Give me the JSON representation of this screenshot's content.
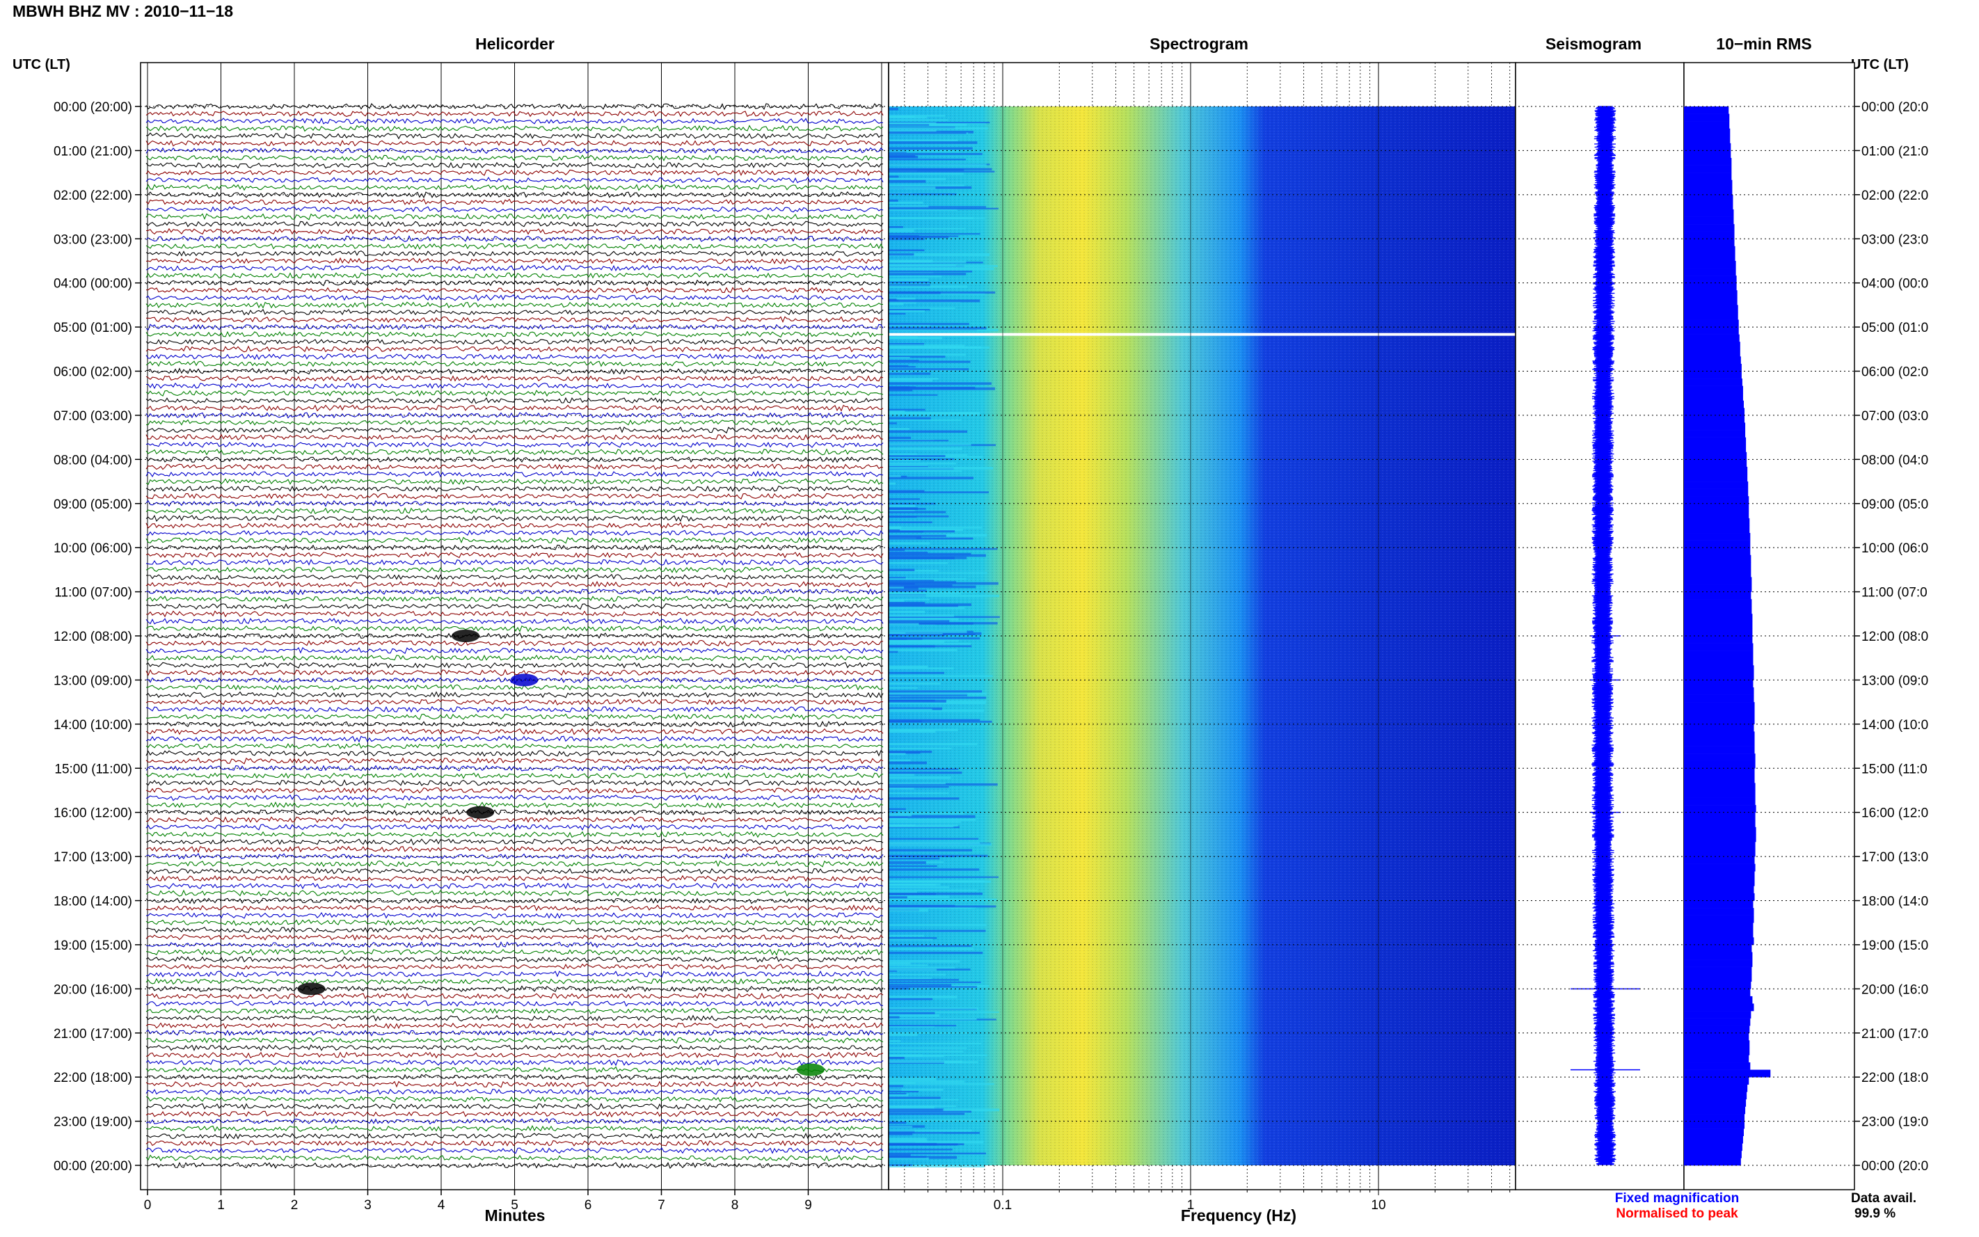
{
  "header": {
    "title": "MBWH BHZ MV : 2010−11−18",
    "utc_label_left": "UTC (LT)",
    "utc_label_right": "UTC (LT)"
  },
  "panels": {
    "helicorder": "Helicorder",
    "spectrogram": "Spectrogram",
    "seismogram": "Seismogram",
    "rms": "10−min RMS"
  },
  "time_labels": [
    "00:00 (20:00)",
    "01:00 (21:00)",
    "02:00 (22:00)",
    "03:00 (23:00)",
    "04:00 (00:00)",
    "05:00 (01:00)",
    "06:00 (02:00)",
    "07:00 (03:00)",
    "08:00 (04:00)",
    "09:00 (05:00)",
    "10:00 (06:00)",
    "11:00 (07:00)",
    "12:00 (08:00)",
    "13:00 (09:00)",
    "14:00 (10:00)",
    "15:00 (11:00)",
    "16:00 (12:00)",
    "17:00 (13:00)",
    "18:00 (14:00)",
    "19:00 (15:00)",
    "20:00 (16:00)",
    "21:00 (17:00)",
    "22:00 (18:00)",
    "23:00 (19:00)",
    "00:00 (20:00)"
  ],
  "time_labels_right": [
    "00:00 (20:0",
    "01:00 (21:0",
    "02:00 (22:0",
    "03:00 (23:0",
    "04:00 (00:0",
    "05:00 (01:0",
    "06:00 (02:0",
    "07:00 (03:0",
    "08:00 (04:0",
    "09:00 (05:0",
    "10:00 (06:0",
    "11:00 (07:0",
    "12:00 (08:0",
    "13:00 (09:0",
    "14:00 (10:0",
    "15:00 (11:0",
    "16:00 (12:0",
    "17:00 (13:0",
    "18:00 (14:0",
    "19:00 (15:0",
    "20:00 (16:0",
    "21:00 (17:0",
    "22:00 (18:0",
    "23:00 (19:0",
    "00:00 (20:0"
  ],
  "helicorder": {
    "x_ticks": [
      "0",
      "1",
      "2",
      "3",
      "4",
      "5",
      "6",
      "7",
      "8",
      "9"
    ],
    "xlabel": "Minutes",
    "line_colors": [
      "#000000",
      "#8b0000",
      "#0000cc",
      "#008000"
    ]
  },
  "spectrogram": {
    "x_ticks": [
      "0.1",
      "1",
      "10"
    ],
    "xlabel": "Frequency (Hz)",
    "scale": "log",
    "colormap": "jet"
  },
  "footer": {
    "fixed_magnification": "Fixed magnification",
    "normalised_to_peak": "Normalised to peak",
    "data_avail_label": "Data avail.",
    "data_avail_value": "99.9 %"
  },
  "colors": {
    "fixed": "#0000ff",
    "normalised": "#ff0000",
    "rms_bar": "#0000ff"
  },
  "chart_data": [
    {
      "type": "line",
      "title": "Helicorder",
      "xlabel": "Minutes",
      "xlim": [
        0,
        10
      ],
      "rows_per_hour": 6,
      "events": [
        {
          "time": "12:00",
          "minute": 4.2
        },
        {
          "time": "13:00",
          "minute": 5.0
        },
        {
          "time": "16:00",
          "minute": 4.4
        },
        {
          "time": "20:00",
          "minute": 2.1
        },
        {
          "time": "21:50",
          "minute": 8.9
        }
      ]
    },
    {
      "type": "heatmap",
      "title": "Spectrogram",
      "xlabel": "Frequency (Hz)",
      "x_ticks": [
        0.1,
        1,
        10
      ],
      "gap_time": "05:10"
    },
    {
      "type": "bar",
      "title": "10−min RMS",
      "orientation": "horizontal",
      "bins_per_hour": 6,
      "values": [
        0.62,
        0.63,
        0.63,
        0.64,
        0.64,
        0.65,
        0.65,
        0.66,
        0.66,
        0.66,
        0.67,
        0.67,
        0.68,
        0.68,
        0.69,
        0.69,
        0.7,
        0.7,
        0.7,
        0.71,
        0.71,
        0.72,
        0.72,
        0.73,
        0.73,
        0.74,
        0.74,
        0.75,
        0.75,
        0.76,
        0.76,
        0.77,
        0.78,
        0.78,
        0.79,
        0.8,
        0.8,
        0.81,
        0.82,
        0.82,
        0.83,
        0.84,
        0.84,
        0.85,
        0.85,
        0.86,
        0.86,
        0.87,
        0.87,
        0.88,
        0.88,
        0.89,
        0.89,
        0.9,
        0.9,
        0.9,
        0.91,
        0.91,
        0.92,
        0.92,
        0.92,
        0.93,
        0.93,
        0.93,
        0.94,
        0.94,
        0.93,
        0.94,
        0.94,
        0.95,
        0.95,
        0.95,
        0.95,
        0.96,
        0.96,
        0.96,
        0.97,
        0.97,
        0.96,
        0.97,
        0.97,
        0.98,
        0.98,
        0.98,
        0.97,
        0.98,
        0.98,
        0.98,
        0.99,
        0.99,
        0.98,
        0.98,
        0.99,
        0.99,
        0.99,
        1.0,
        0.99,
        0.99,
        1.0,
        1.0,
        0.99,
        0.99,
        0.98,
        0.99,
        0.98,
        0.98,
        0.97,
        0.98,
        0.96,
        0.97,
        0.97,
        0.96,
        0.96,
        0.97,
        0.94,
        0.95,
        0.95,
        0.94,
        0.94,
        0.93,
        0.92,
        0.95,
        0.97,
        0.93,
        0.92,
        0.91,
        0.9,
        0.91,
        0.91,
        0.9,
        0.92,
        1.2,
        0.9,
        0.88,
        0.87,
        0.86,
        0.85,
        0.84,
        0.84,
        0.83,
        0.82,
        0.81,
        0.8,
        0.79
      ]
    }
  ]
}
